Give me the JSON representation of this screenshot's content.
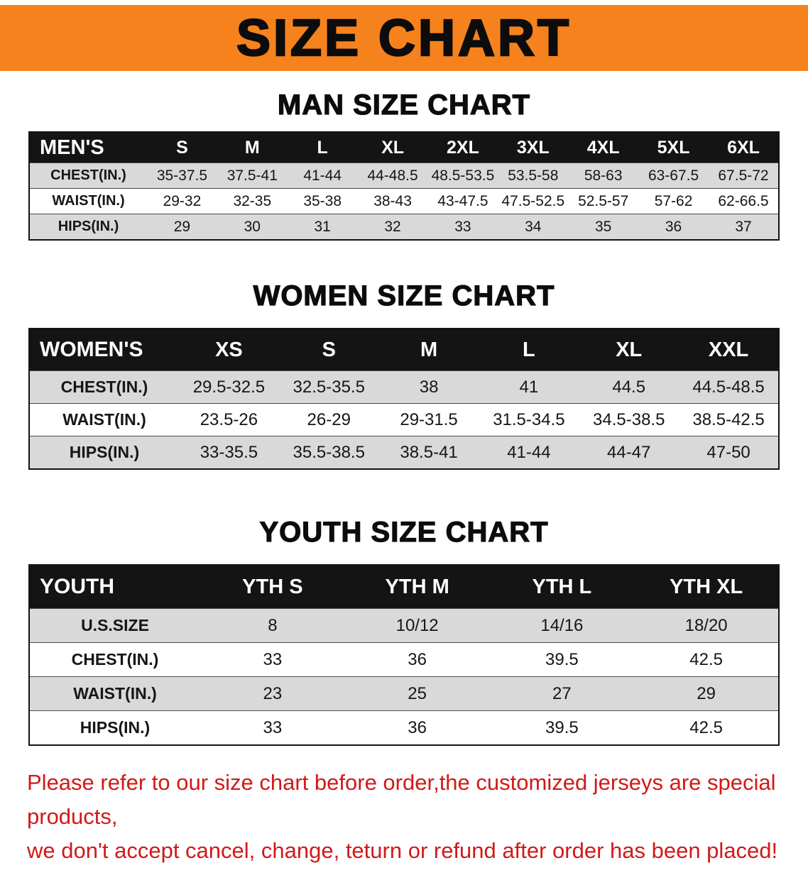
{
  "banner": {
    "title": "SIZE CHART",
    "bg_color": "#f6821e"
  },
  "sections": [
    {
      "heading": "MAN SIZE CHART",
      "table": {
        "header": [
          "MEN'S",
          "S",
          "M",
          "L",
          "XL",
          "2XL",
          "3XL",
          "4XL",
          "5XL",
          "6XL"
        ],
        "rows": [
          [
            "CHEST(IN.)",
            "35-37.5",
            "37.5-41",
            "41-44",
            "44-48.5",
            "48.5-53.5",
            "53.5-58",
            "58-63",
            "63-67.5",
            "67.5-72"
          ],
          [
            "WAIST(IN.)",
            "29-32",
            "32-35",
            "35-38",
            "38-43",
            "43-47.5",
            "47.5-52.5",
            "52.5-57",
            "57-62",
            "62-66.5"
          ],
          [
            "HIPS(IN.)",
            "29",
            "30",
            "31",
            "32",
            "33",
            "34",
            "35",
            "36",
            "37"
          ]
        ]
      }
    },
    {
      "heading": "WOMEN SIZE CHART",
      "table": {
        "header": [
          "WOMEN'S",
          "XS",
          "S",
          "M",
          "L",
          "XL",
          "XXL"
        ],
        "rows": [
          [
            "CHEST(IN.)",
            "29.5-32.5",
            "32.5-35.5",
            "38",
            "41",
            "44.5",
            "44.5-48.5"
          ],
          [
            "WAIST(IN.)",
            "23.5-26",
            "26-29",
            "29-31.5",
            "31.5-34.5",
            "34.5-38.5",
            "38.5-42.5"
          ],
          [
            "HIPS(IN.)",
            "33-35.5",
            "35.5-38.5",
            "38.5-41",
            "41-44",
            "44-47",
            "47-50"
          ]
        ]
      }
    },
    {
      "heading": "YOUTH SIZE CHART",
      "table": {
        "header": [
          "YOUTH",
          "YTH S",
          "YTH M",
          "YTH L",
          "YTH XL"
        ],
        "rows": [
          [
            "U.S.SIZE",
            "8",
            "10/12",
            "14/16",
            "18/20"
          ],
          [
            "CHEST(IN.)",
            "33",
            "36",
            "39.5",
            "42.5"
          ],
          [
            "WAIST(IN.)",
            "23",
            "25",
            "27",
            "29"
          ],
          [
            "HIPS(IN.)",
            "33",
            "36",
            "39.5",
            "42.5"
          ]
        ]
      }
    }
  ],
  "footer": {
    "line1": "Please refer to our size chart before order,the customized jerseys are special products,",
    "line2": "we don't accept cancel, change, teturn or refund after order has been placed!",
    "text_color": "#d11919"
  }
}
